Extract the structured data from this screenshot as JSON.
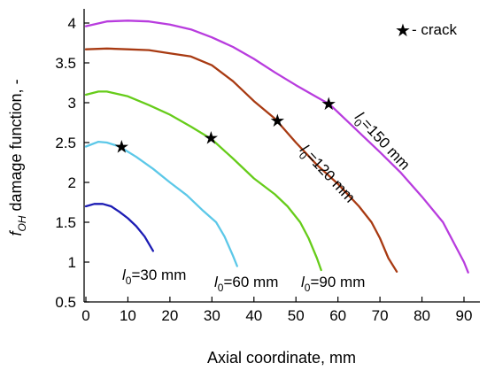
{
  "chart_data": {
    "type": "line",
    "xlabel": "Axial coordinate, mm",
    "ylabel": {
      "main": "f",
      "sub": "OH",
      "rest": " damage function, -"
    },
    "xlim": [
      0,
      92
    ],
    "ylim": [
      0.5,
      4.2
    ],
    "xticks": [
      "0",
      "10",
      "20",
      "30",
      "40",
      "50",
      "60",
      "70",
      "80",
      "90"
    ],
    "yticks": [
      "0.5",
      "1",
      "1.5",
      "2",
      "2.5",
      "3",
      "3.5",
      "4"
    ],
    "grid": false,
    "legend": {
      "marker": "★",
      "label": " - crack",
      "position": "top-right"
    },
    "series": [
      {
        "color": "#1c1cb4",
        "label": {
          "pre": "l",
          "sub": "0",
          "post": "=30 mm"
        },
        "points": [
          [
            0,
            1.7
          ],
          [
            2,
            1.73
          ],
          [
            4,
            1.73
          ],
          [
            6,
            1.7
          ],
          [
            8,
            1.63
          ],
          [
            10,
            1.55
          ],
          [
            12,
            1.45
          ],
          [
            14,
            1.32
          ],
          [
            16,
            1.14
          ]
        ],
        "crack": null
      },
      {
        "color": "#5cc8e8",
        "label": {
          "pre": "l",
          "sub": "0",
          "post": "=60 mm"
        },
        "points": [
          [
            0,
            2.45
          ],
          [
            3,
            2.51
          ],
          [
            5,
            2.5
          ],
          [
            8,
            2.45
          ],
          [
            12,
            2.32
          ],
          [
            16,
            2.17
          ],
          [
            20,
            2.0
          ],
          [
            24,
            1.84
          ],
          [
            28,
            1.64
          ],
          [
            31,
            1.5
          ],
          [
            33,
            1.32
          ],
          [
            35,
            1.08
          ],
          [
            36,
            0.95
          ]
        ],
        "crack": [
          8.5,
          2.45
        ]
      },
      {
        "color": "#66cc1a",
        "label": {
          "pre": "l",
          "sub": "0",
          "post": "=90 mm"
        },
        "points": [
          [
            0,
            3.1
          ],
          [
            3,
            3.14
          ],
          [
            5,
            3.14
          ],
          [
            10,
            3.08
          ],
          [
            15,
            2.97
          ],
          [
            20,
            2.85
          ],
          [
            25,
            2.7
          ],
          [
            30,
            2.54
          ],
          [
            35,
            2.3
          ],
          [
            40,
            2.05
          ],
          [
            45,
            1.85
          ],
          [
            48,
            1.7
          ],
          [
            51,
            1.5
          ],
          [
            53,
            1.3
          ],
          [
            55,
            1.05
          ],
          [
            56,
            0.9
          ]
        ],
        "crack": [
          29.8,
          2.56
        ]
      },
      {
        "color": "#a83a12",
        "label": {
          "pre": "l",
          "sub": "0",
          "post": "=120 mm"
        },
        "points": [
          [
            0,
            3.67
          ],
          [
            5,
            3.68
          ],
          [
            10,
            3.67
          ],
          [
            15,
            3.66
          ],
          [
            20,
            3.62
          ],
          [
            25,
            3.58
          ],
          [
            30,
            3.47
          ],
          [
            35,
            3.27
          ],
          [
            40,
            3.02
          ],
          [
            45,
            2.8
          ],
          [
            50,
            2.5
          ],
          [
            55,
            2.22
          ],
          [
            60,
            1.98
          ],
          [
            65,
            1.7
          ],
          [
            68,
            1.5
          ],
          [
            70,
            1.3
          ],
          [
            72,
            1.05
          ],
          [
            74,
            0.88
          ]
        ],
        "crack": [
          45.6,
          2.78
        ]
      },
      {
        "color": "#b83cde",
        "label": {
          "pre": "l",
          "sub": "0",
          "post": "=150 mm"
        },
        "points": [
          [
            0,
            3.96
          ],
          [
            5,
            4.02
          ],
          [
            10,
            4.03
          ],
          [
            15,
            4.02
          ],
          [
            20,
            3.98
          ],
          [
            25,
            3.92
          ],
          [
            30,
            3.82
          ],
          [
            35,
            3.7
          ],
          [
            40,
            3.55
          ],
          [
            45,
            3.38
          ],
          [
            50,
            3.22
          ],
          [
            55,
            3.07
          ],
          [
            58,
            2.98
          ],
          [
            62,
            2.78
          ],
          [
            66,
            2.58
          ],
          [
            70,
            2.38
          ],
          [
            75,
            2.12
          ],
          [
            80,
            1.82
          ],
          [
            85,
            1.5
          ],
          [
            88,
            1.2
          ],
          [
            90,
            1.0
          ],
          [
            91,
            0.87
          ]
        ],
        "crack": [
          57.8,
          2.99
        ]
      }
    ]
  }
}
